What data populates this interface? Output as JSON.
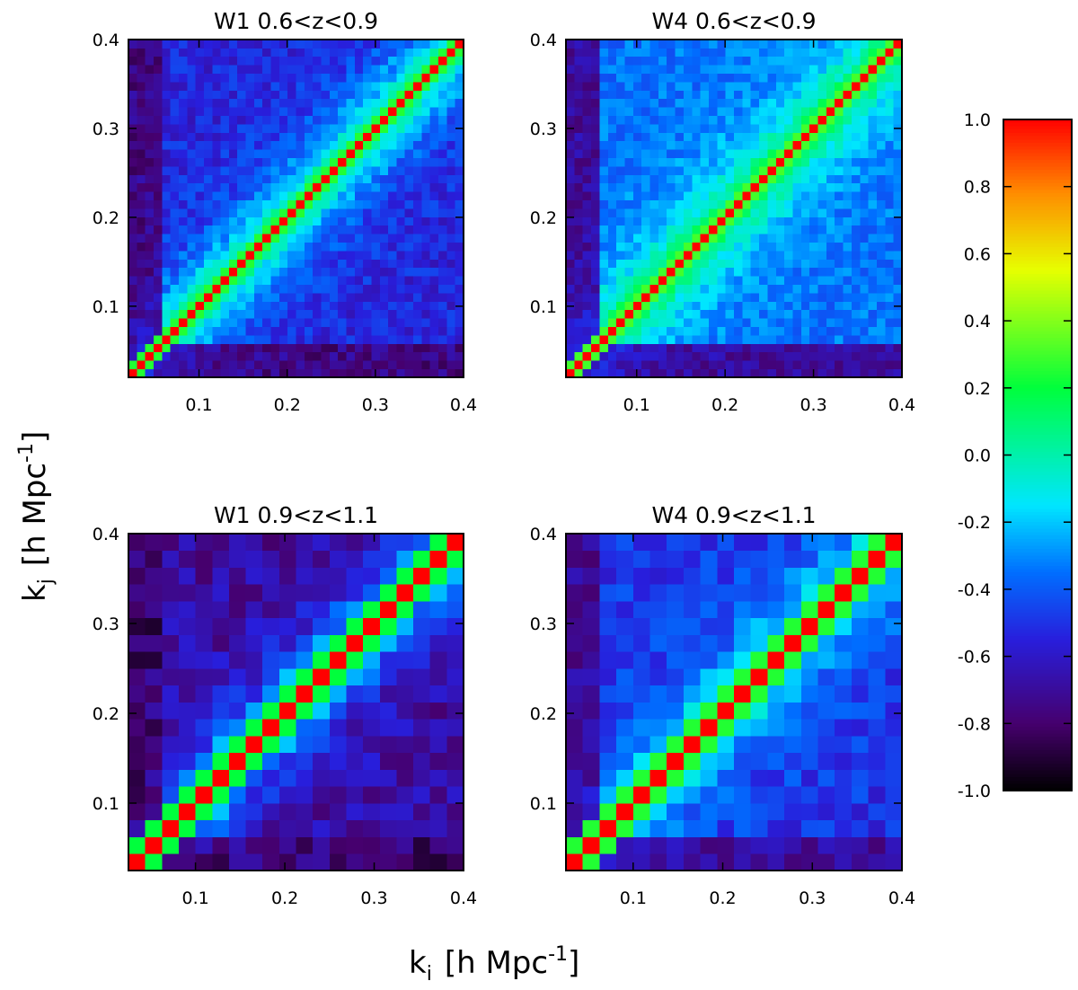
{
  "chart_data": {
    "type": "heatmap",
    "description_kind": "correlation matrices of power spectrum bins",
    "colorbar": {
      "min": -1.0,
      "max": 1.0,
      "ticks": [
        "1.0",
        "0.8",
        "0.6",
        "0.4",
        "0.2",
        "0.0",
        "-0.2",
        "-0.4",
        "-0.6",
        "-0.8",
        "-1.0"
      ],
      "colormap": "rainbow"
    },
    "xlabel": "k",
    "xlabel_sub": "i",
    "ylabel": "k",
    "ylabel_sub": "j",
    "unit_prefix": "[h Mpc",
    "unit_exp": "-1",
    "unit_suffix": "]",
    "panels": [
      {
        "title": "W1  0.6<z<0.9",
        "nbins": 40,
        "k_range": [
          0.02,
          0.4
        ],
        "xticks": [
          "0.1",
          "0.2",
          "0.3",
          "0.4"
        ],
        "yticks": [
          "0.1",
          "0.2",
          "0.3",
          "0.4"
        ],
        "diagonal": 1.0,
        "offdiag_near": 0.25,
        "offdiag_far": -0.55,
        "lowk_edge": -0.75,
        "spread": 0.1,
        "seed": 11
      },
      {
        "title": "W4  0.6<z<0.9",
        "nbins": 40,
        "k_range": [
          0.02,
          0.4
        ],
        "xticks": [
          "0.1",
          "0.2",
          "0.3",
          "0.4"
        ],
        "yticks": [
          "0.1",
          "0.2",
          "0.3",
          "0.4"
        ],
        "diagonal": 1.0,
        "offdiag_near": 0.3,
        "offdiag_far": -0.35,
        "lowk_edge": -0.7,
        "spread": 0.09,
        "seed": 23
      },
      {
        "title": "W1  0.9<z<1.1",
        "nbins": 20,
        "k_range": [
          0.025,
          0.4
        ],
        "xticks": [
          "0.1",
          "0.2",
          "0.3",
          "0.4"
        ],
        "yticks": [
          "0.1",
          "0.2",
          "0.3",
          "0.4"
        ],
        "diagonal": 1.0,
        "offdiag_near": 0.2,
        "offdiag_far": -0.7,
        "lowk_edge": -0.8,
        "spread": 0.12,
        "seed": 37
      },
      {
        "title": "W4  0.9<z<1.1",
        "nbins": 20,
        "k_range": [
          0.025,
          0.4
        ],
        "xticks": [
          "0.1",
          "0.2",
          "0.3",
          "0.4"
        ],
        "yticks": [
          "0.1",
          "0.2",
          "0.3",
          "0.4"
        ],
        "diagonal": 1.0,
        "offdiag_near": 0.25,
        "offdiag_far": -0.5,
        "lowk_edge": -0.7,
        "spread": 0.1,
        "seed": 53
      }
    ]
  }
}
